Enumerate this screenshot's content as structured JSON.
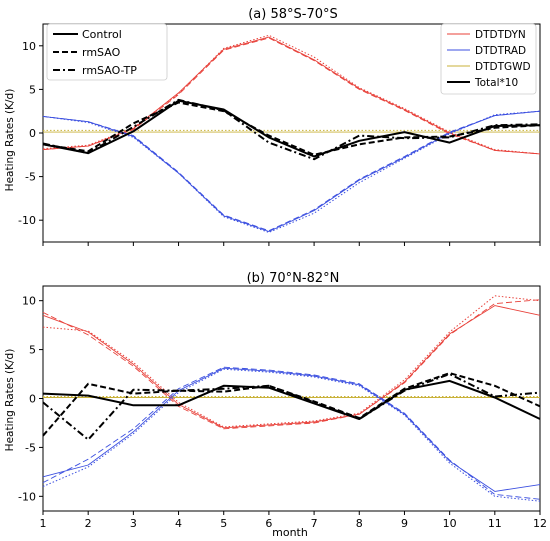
{
  "colors": {
    "dyn": "#e8413a",
    "rad": "#3b4fe0",
    "gwd": "#c9b23a",
    "total": "#000000",
    "background": "#ffffff"
  },
  "figure": {
    "ylabel": "Heating Rates (K/d)",
    "xlabel": "month"
  },
  "chart_data": [
    {
      "type": "line",
      "title": "(a) 58°S-70°S",
      "xlabel": "",
      "ylabel": "Heating Rates (K/d)",
      "xlim": [
        1,
        12
      ],
      "ylim": [
        -12.5,
        12.5
      ],
      "x": [
        1,
        2,
        3,
        4,
        5,
        6,
        7,
        8,
        9,
        10,
        11,
        12
      ],
      "xticks": [
        "1",
        "2",
        "3",
        "4",
        "5",
        "6",
        "7",
        "8",
        "9",
        "10",
        "11",
        "12"
      ],
      "yticks": [
        -10,
        -5,
        0,
        5,
        10
      ],
      "legend_styles": {
        "position": "top-left",
        "entries": [
          {
            "label": "Control",
            "dash": "solid"
          },
          {
            "label": "rmSAO",
            "dash": "dashed"
          },
          {
            "label": "rmSAO-TP",
            "dash": "dashdot"
          }
        ]
      },
      "legend_vars": {
        "position": "top-right",
        "entries": [
          {
            "label": "DTDTDYN",
            "color": "dyn"
          },
          {
            "label": "DTDTRAD",
            "color": "rad"
          },
          {
            "label": "DTDTGWD",
            "color": "gwd"
          },
          {
            "label": "Total*10",
            "color": "total"
          }
        ]
      },
      "series": [
        {
          "var": "dyn",
          "style": "solid",
          "values": [
            -1.9,
            -1.5,
            0.5,
            4.6,
            9.6,
            11.0,
            8.4,
            5.1,
            2.7,
            0.0,
            -2.0,
            -2.4
          ]
        },
        {
          "var": "dyn",
          "style": "dashed",
          "values": [
            -1.9,
            -1.5,
            0.4,
            4.4,
            9.5,
            10.9,
            8.3,
            5.0,
            2.6,
            -0.1,
            -2.0,
            -2.4
          ]
        },
        {
          "var": "dyn",
          "style": "dotted",
          "values": [
            -1.8,
            -1.4,
            0.6,
            4.5,
            9.7,
            11.2,
            8.7,
            5.2,
            2.8,
            0.1,
            -1.9,
            -2.4
          ]
        },
        {
          "var": "rad",
          "style": "solid",
          "values": [
            1.9,
            1.3,
            -0.4,
            -4.6,
            -9.5,
            -11.3,
            -8.9,
            -5.4,
            -2.8,
            0.0,
            2.0,
            2.5
          ]
        },
        {
          "var": "rad",
          "style": "dashed",
          "values": [
            1.9,
            1.3,
            -0.3,
            -4.5,
            -9.4,
            -11.2,
            -8.8,
            -5.3,
            -2.7,
            0.1,
            2.0,
            2.5
          ]
        },
        {
          "var": "rad",
          "style": "dotted",
          "values": [
            1.9,
            1.2,
            -0.5,
            -4.6,
            -9.6,
            -11.4,
            -9.2,
            -5.7,
            -2.9,
            -0.1,
            2.1,
            2.5
          ]
        },
        {
          "var": "gwd",
          "style": "solid",
          "values": [
            0.1,
            0.1,
            0.1,
            0.1,
            0.1,
            0.1,
            0.1,
            0.1,
            0.1,
            0.1,
            0.1,
            0.1
          ]
        },
        {
          "var": "gwd",
          "style": "dotted",
          "values": [
            0.3,
            0.3,
            0.3,
            0.3,
            0.3,
            0.3,
            0.3,
            0.3,
            0.3,
            0.3,
            0.3,
            0.3
          ]
        },
        {
          "var": "total",
          "style": "solid",
          "values": [
            -1.3,
            -2.3,
            0.2,
            3.7,
            2.7,
            -0.5,
            -2.7,
            -0.9,
            0.1,
            -1.1,
            0.8,
            0.9
          ]
        },
        {
          "var": "total",
          "style": "dashed",
          "values": [
            -1.3,
            -2.1,
            1.1,
            3.5,
            2.5,
            -0.3,
            -2.5,
            -1.3,
            -0.5,
            -0.4,
            0.6,
            0.9
          ]
        },
        {
          "var": "total",
          "style": "dashdot",
          "values": [
            -1.2,
            -2.3,
            0.7,
            3.8,
            2.6,
            -1.1,
            -3.0,
            -0.3,
            -0.6,
            -0.5,
            0.9,
            1.0
          ]
        }
      ]
    },
    {
      "type": "line",
      "title": "(b) 70°N-82°N",
      "xlabel": "month",
      "ylabel": "Heating Rates (K/d)",
      "xlim": [
        1,
        12
      ],
      "ylim": [
        -11.5,
        11.5
      ],
      "x": [
        1,
        2,
        3,
        4,
        5,
        6,
        7,
        8,
        9,
        10,
        11,
        12
      ],
      "xticks": [
        "1",
        "2",
        "3",
        "4",
        "5",
        "6",
        "7",
        "8",
        "9",
        "10",
        "11",
        "12"
      ],
      "yticks": [
        -10,
        -5,
        0,
        5,
        10
      ],
      "series": [
        {
          "var": "dyn",
          "style": "solid",
          "values": [
            8.5,
            6.8,
            3.5,
            -0.6,
            -3.0,
            -2.7,
            -2.4,
            -1.6,
            1.7,
            6.6,
            9.5,
            8.5
          ]
        },
        {
          "var": "dyn",
          "style": "dashed",
          "values": [
            8.8,
            6.5,
            3.3,
            -0.8,
            -3.1,
            -2.8,
            -2.5,
            -1.6,
            1.6,
            6.5,
            9.7,
            10.1
          ]
        },
        {
          "var": "dyn",
          "style": "dotted",
          "values": [
            7.3,
            6.9,
            3.7,
            -0.4,
            -2.9,
            -2.6,
            -2.3,
            -1.5,
            1.9,
            6.8,
            10.5,
            10.0
          ]
        },
        {
          "var": "rad",
          "style": "solid",
          "values": [
            -8.0,
            -6.8,
            -3.4,
            0.8,
            3.1,
            2.8,
            2.3,
            1.4,
            -1.6,
            -6.4,
            -9.5,
            -8.8
          ]
        },
        {
          "var": "rad",
          "style": "dashed",
          "values": [
            -8.6,
            -6.2,
            -3.1,
            1.0,
            3.2,
            2.9,
            2.4,
            1.5,
            -1.5,
            -6.3,
            -9.8,
            -10.3
          ]
        },
        {
          "var": "rad",
          "style": "dotted",
          "values": [
            -9.0,
            -7.0,
            -3.6,
            0.6,
            3.0,
            2.7,
            2.2,
            1.3,
            -1.7,
            -6.6,
            -10.0,
            -10.5
          ]
        },
        {
          "var": "gwd",
          "style": "solid",
          "values": [
            0.1,
            0.1,
            0.1,
            0.1,
            0.1,
            0.1,
            0.1,
            0.1,
            0.1,
            0.1,
            0.1,
            0.1
          ]
        },
        {
          "var": "gwd",
          "style": "dotted",
          "values": [
            0.2,
            0.2,
            0.2,
            0.2,
            0.2,
            0.2,
            0.2,
            0.2,
            0.2,
            0.2,
            0.2,
            0.2
          ]
        },
        {
          "var": "total",
          "style": "solid",
          "values": [
            0.5,
            0.3,
            -0.7,
            -0.7,
            1.3,
            1.1,
            -0.5,
            -2.1,
            0.9,
            1.8,
            0.1,
            -2.1
          ]
        },
        {
          "var": "total",
          "style": "dashed",
          "values": [
            -3.8,
            1.5,
            0.5,
            0.8,
            0.7,
            1.3,
            -0.3,
            -2.0,
            1.0,
            2.6,
            1.3,
            -0.8
          ]
        },
        {
          "var": "total",
          "style": "dashdot",
          "values": [
            -0.4,
            -4.2,
            0.9,
            0.8,
            1.0,
            1.3,
            -0.4,
            -2.1,
            0.8,
            2.5,
            0.2,
            0.6
          ]
        }
      ]
    }
  ]
}
